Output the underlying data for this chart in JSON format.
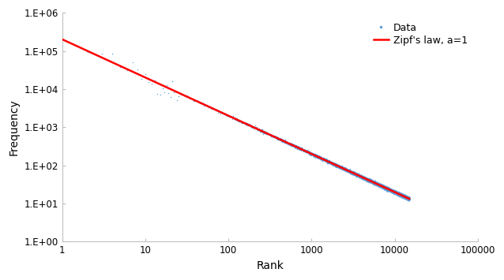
{
  "title": "",
  "xlabel": "Rank",
  "ylabel": "Frequency",
  "xlim": [
    1,
    100000
  ],
  "ylim": [
    1.0,
    1000000
  ],
  "zipf_constant": 200000,
  "zipf_exponent": 1.0,
  "n_data_points": 15000,
  "data_color": "#5b9bd5",
  "zipf_color": "#ff0000",
  "data_label": "Data",
  "zipf_label": "Zipf's law, a=1",
  "background_color": "#ffffff",
  "scatter_noise_low_ranks": 0.35,
  "scatter_noise_high_ranks": 0.04,
  "noise_transition_rank": 25,
  "axis_color": "#c0c0c0",
  "tick_color": "#808080",
  "label_color": "#000000"
}
